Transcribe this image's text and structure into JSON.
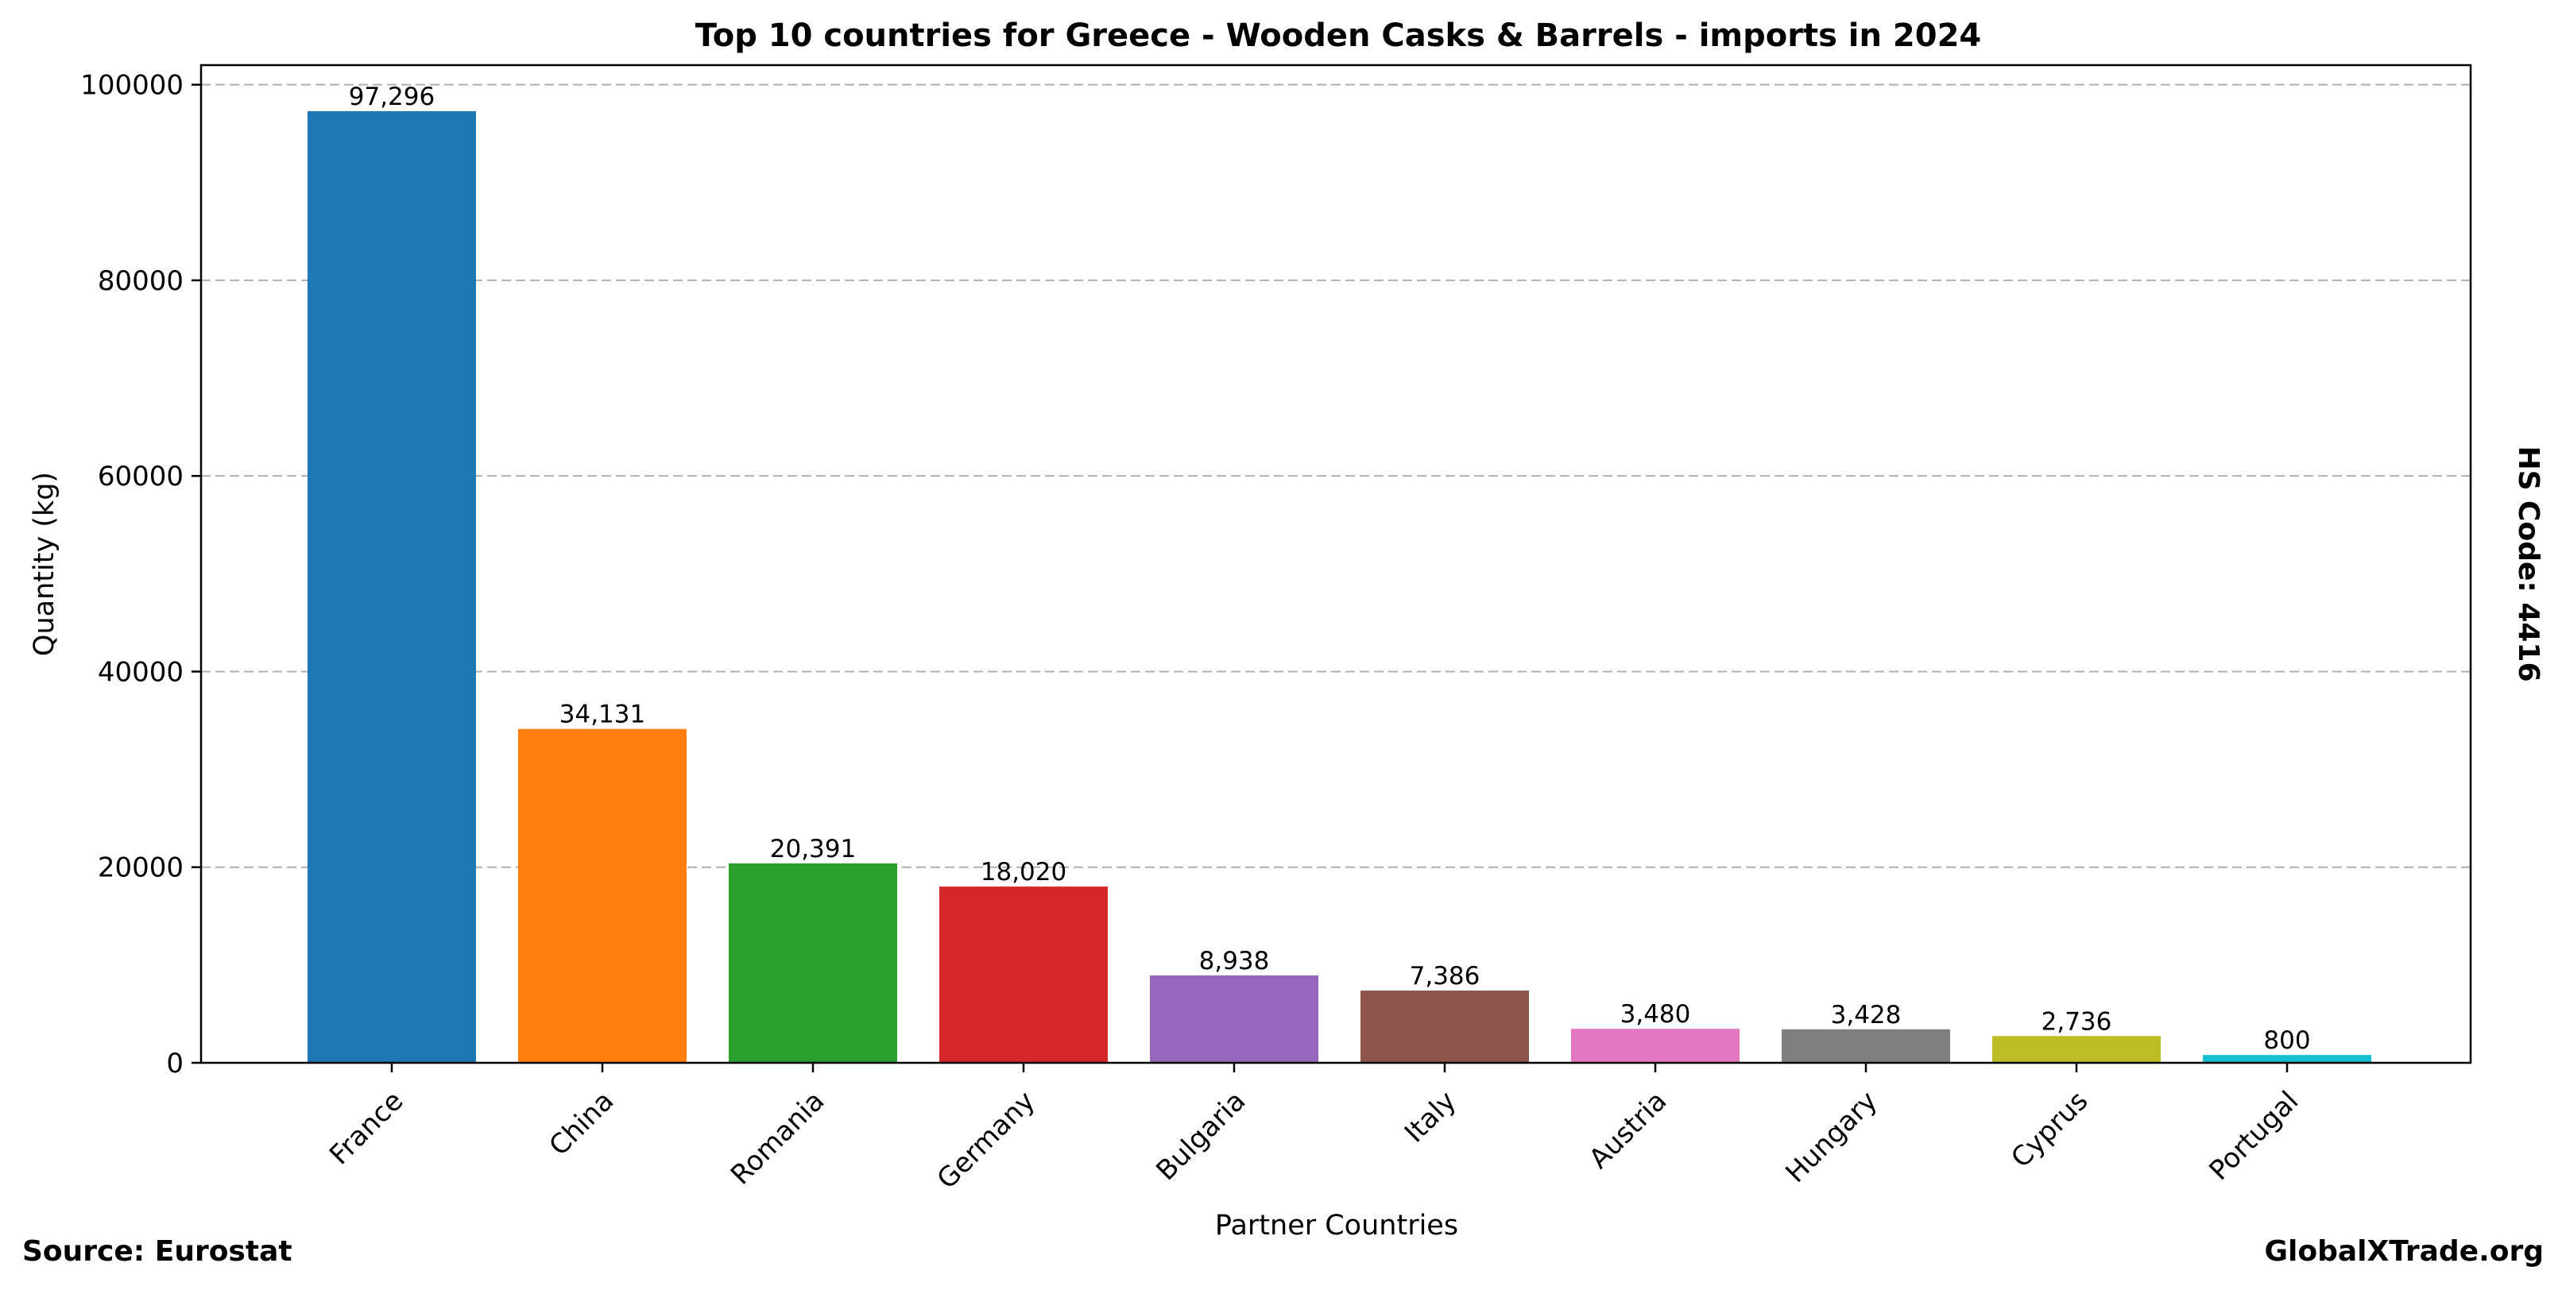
{
  "chart_data": {
    "type": "bar",
    "title": "Top 10 countries for Greece - Wooden Casks & Barrels - imports in 2024",
    "xlabel": "Partner Countries",
    "ylabel": "Quantity (kg)",
    "categories": [
      "France",
      "China",
      "Romania",
      "Germany",
      "Bulgaria",
      "Italy",
      "Austria",
      "Hungary",
      "Cyprus",
      "Portugal"
    ],
    "values": [
      97296,
      34131,
      20391,
      18020,
      8938,
      7386,
      3480,
      3428,
      2736,
      800
    ],
    "value_labels": [
      "97,296",
      "34,131",
      "20,391",
      "18,020",
      "8,938",
      "7,386",
      "3,480",
      "3,428",
      "2,736",
      "800"
    ],
    "colors": [
      "#1f77b4",
      "#ff7f0e",
      "#2ca02c",
      "#d62728",
      "#9467bd",
      "#8c564b",
      "#e377c2",
      "#7f7f7f",
      "#bcbd22",
      "#17becf"
    ],
    "y_ticks": [
      0,
      20000,
      40000,
      60000,
      80000,
      100000
    ],
    "ylim": [
      0,
      102000
    ],
    "grid": "horizontal-dashed",
    "legend": "none"
  },
  "side_label": "HS Code: 4416",
  "footer": {
    "source": "Source: Eurostat",
    "brand": "GlobalXTrade.org"
  }
}
